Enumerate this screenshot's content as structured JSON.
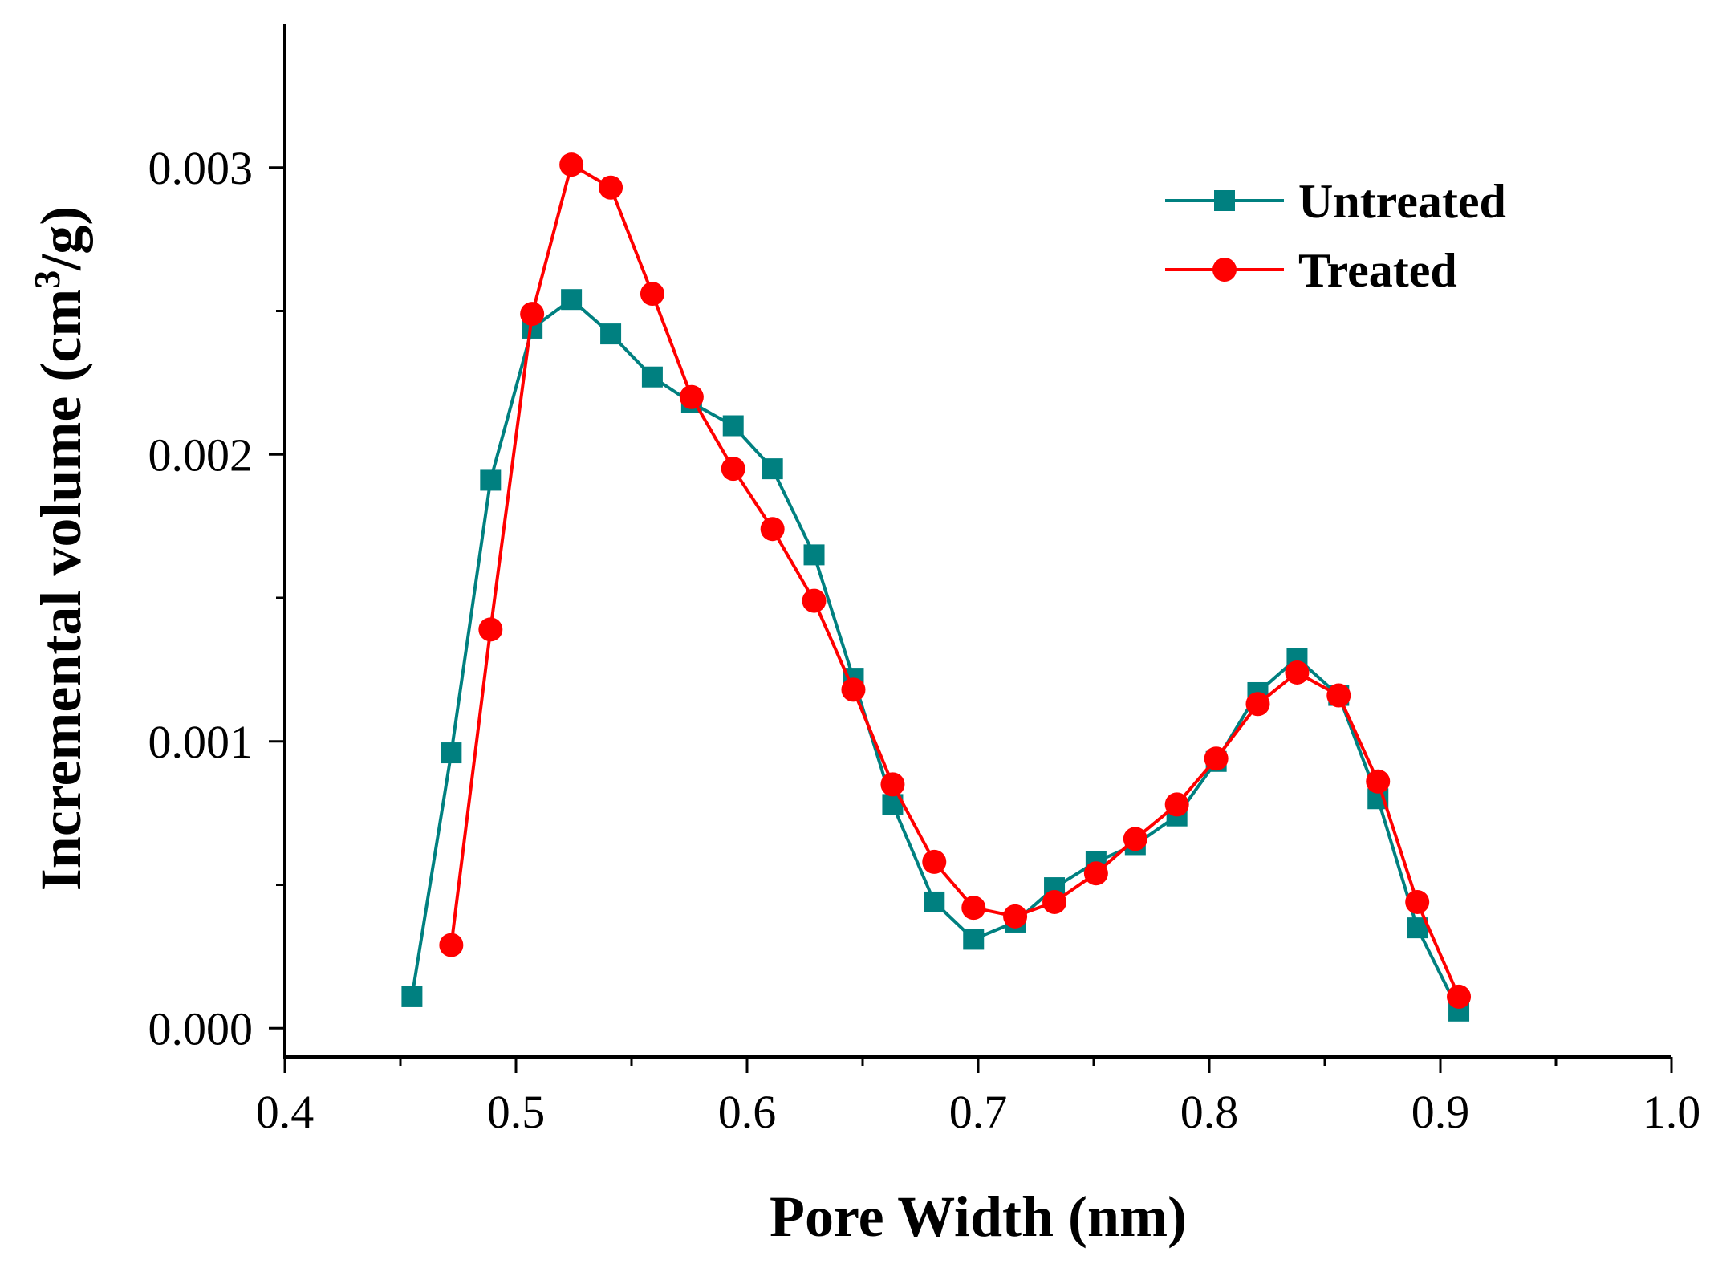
{
  "chart_data": {
    "type": "line",
    "title": "",
    "xlabel": "Pore Width (nm)",
    "ylabel": {
      "prefix": "Incremental volume (cm",
      "sup": "3",
      "suffix": "/g)"
    },
    "xlim": [
      0.4,
      1.0
    ],
    "ylim": [
      -0.0001,
      0.0035
    ],
    "x_ticks": [
      0.4,
      0.5,
      0.6,
      0.7,
      0.8,
      0.9,
      1.0
    ],
    "x_tick_labels": [
      "0.4",
      "0.5",
      "0.6",
      "0.7",
      "0.8",
      "0.9",
      "1.0"
    ],
    "y_ticks": [
      0.0,
      0.001,
      0.002,
      0.003
    ],
    "y_tick_labels": [
      "0.000",
      "0.001",
      "0.002",
      "0.003"
    ],
    "legend_position": "top-right",
    "series": [
      {
        "name": "Untreated",
        "color": "#008080",
        "marker": "square",
        "x": [
          0.455,
          0.472,
          0.489,
          0.507,
          0.524,
          0.541,
          0.559,
          0.576,
          0.594,
          0.611,
          0.629,
          0.646,
          0.663,
          0.681,
          0.698,
          0.716,
          0.733,
          0.751,
          0.768,
          0.786,
          0.803,
          0.821,
          0.838,
          0.856,
          0.873,
          0.89,
          0.908
        ],
        "values": [
          0.00011,
          0.00096,
          0.00191,
          0.00244,
          0.00254,
          0.00242,
          0.00227,
          0.00218,
          0.0021,
          0.00195,
          0.00165,
          0.00122,
          0.00078,
          0.00044,
          0.00031,
          0.00037,
          0.00049,
          0.00058,
          0.00064,
          0.00074,
          0.00093,
          0.00117,
          0.00129,
          0.00116,
          0.0008,
          0.00035,
          6e-05
        ]
      },
      {
        "name": "Treated",
        "color": "#ff0000",
        "marker": "circle",
        "x": [
          0.472,
          0.489,
          0.507,
          0.524,
          0.541,
          0.559,
          0.576,
          0.594,
          0.611,
          0.629,
          0.646,
          0.663,
          0.681,
          0.698,
          0.716,
          0.733,
          0.751,
          0.768,
          0.786,
          0.803,
          0.821,
          0.838,
          0.856,
          0.873,
          0.89,
          0.908
        ],
        "values": [
          0.00029,
          0.00139,
          0.00249,
          0.00301,
          0.00293,
          0.00256,
          0.0022,
          0.00195,
          0.00174,
          0.00149,
          0.00118,
          0.00085,
          0.00058,
          0.00042,
          0.00039,
          0.00044,
          0.00054,
          0.00066,
          0.00078,
          0.00094,
          0.00113,
          0.00124,
          0.00116,
          0.00086,
          0.00044,
          0.00011
        ]
      }
    ]
  }
}
